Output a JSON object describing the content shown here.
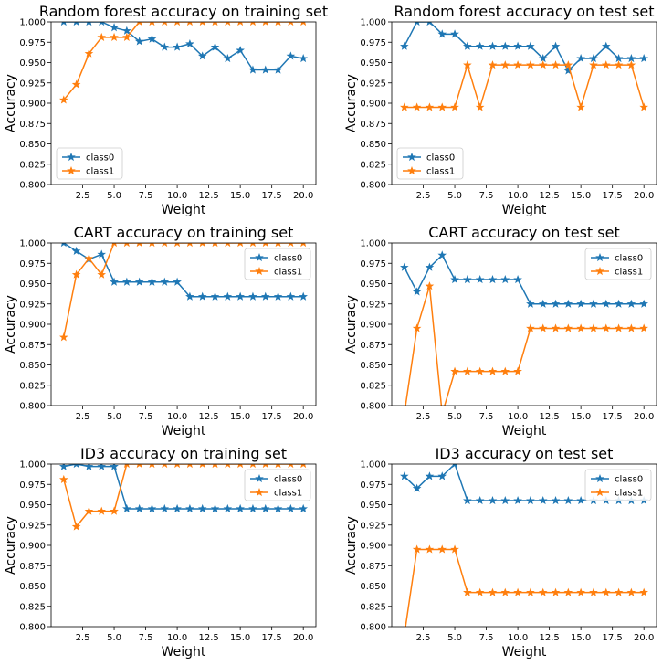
{
  "colors": {
    "class0": "#1f77b4",
    "class1": "#ff7f0e"
  },
  "chart_data": [
    {
      "type": "line",
      "title": "Random forest accuracy on training set",
      "xlabel": "Weight",
      "ylabel": "Accuracy",
      "xlim": [
        0,
        21
      ],
      "ylim": [
        0.8,
        1.0
      ],
      "xticks": [
        2.5,
        5.0,
        7.5,
        10.0,
        12.5,
        15.0,
        17.5,
        20.0
      ],
      "yticks": [
        0.8,
        0.825,
        0.85,
        0.875,
        0.9,
        0.925,
        0.95,
        0.975,
        1.0
      ],
      "grid": false,
      "legend_position": "lower-left",
      "x": [
        1,
        2,
        3,
        4,
        5,
        6,
        7,
        8,
        9,
        10,
        11,
        12,
        13,
        14,
        15,
        16,
        17,
        18,
        19,
        20
      ],
      "series": [
        {
          "name": "class0",
          "values": [
            1.0,
            1.0,
            1.0,
            1.0,
            0.993,
            0.989,
            0.976,
            0.979,
            0.969,
            0.969,
            0.973,
            0.958,
            0.969,
            0.955,
            0.965,
            0.941,
            0.941,
            0.941,
            0.958,
            0.955
          ]
        },
        {
          "name": "class1",
          "values": [
            0.904,
            0.923,
            0.961,
            0.981,
            0.981,
            0.981,
            1.0,
            1.0,
            1.0,
            1.0,
            1.0,
            1.0,
            1.0,
            1.0,
            1.0,
            1.0,
            1.0,
            1.0,
            1.0,
            1.0
          ]
        }
      ]
    },
    {
      "type": "line",
      "title": "Random forest accuracy on test set",
      "xlabel": "Weight",
      "ylabel": "Accuracy",
      "xlim": [
        0,
        21
      ],
      "ylim": [
        0.8,
        1.0
      ],
      "xticks": [
        2.5,
        5.0,
        7.5,
        10.0,
        12.5,
        15.0,
        17.5,
        20.0
      ],
      "yticks": [
        0.8,
        0.825,
        0.85,
        0.875,
        0.9,
        0.925,
        0.95,
        0.975,
        1.0
      ],
      "grid": false,
      "legend_position": "lower-left",
      "x": [
        1,
        2,
        3,
        4,
        5,
        6,
        7,
        8,
        9,
        10,
        11,
        12,
        13,
        14,
        15,
        16,
        17,
        18,
        19,
        20
      ],
      "series": [
        {
          "name": "class0",
          "values": [
            0.97,
            1.0,
            1.0,
            0.985,
            0.985,
            0.97,
            0.97,
            0.97,
            0.97,
            0.97,
            0.97,
            0.955,
            0.97,
            0.94,
            0.955,
            0.955,
            0.97,
            0.955,
            0.955,
            0.955
          ]
        },
        {
          "name": "class1",
          "values": [
            0.895,
            0.895,
            0.895,
            0.895,
            0.895,
            0.947,
            0.895,
            0.947,
            0.947,
            0.947,
            0.947,
            0.947,
            0.947,
            0.947,
            0.895,
            0.947,
            0.947,
            0.947,
            0.947,
            0.895
          ]
        }
      ]
    },
    {
      "type": "line",
      "title": "CART accuracy on training set",
      "xlabel": "Weight",
      "ylabel": "Accuracy",
      "xlim": [
        0,
        21
      ],
      "ylim": [
        0.8,
        1.0
      ],
      "xticks": [
        2.5,
        5.0,
        7.5,
        10.0,
        12.5,
        15.0,
        17.5,
        20.0
      ],
      "yticks": [
        0.8,
        0.825,
        0.85,
        0.875,
        0.9,
        0.925,
        0.95,
        0.975,
        1.0
      ],
      "grid": false,
      "legend_position": "upper-right",
      "x": [
        1,
        2,
        3,
        4,
        5,
        6,
        7,
        8,
        9,
        10,
        11,
        12,
        13,
        14,
        15,
        16,
        17,
        18,
        19,
        20
      ],
      "series": [
        {
          "name": "class0",
          "values": [
            1.0,
            0.99,
            0.98,
            0.986,
            0.952,
            0.952,
            0.952,
            0.952,
            0.952,
            0.952,
            0.934,
            0.934,
            0.934,
            0.934,
            0.934,
            0.934,
            0.934,
            0.934,
            0.934,
            0.934
          ]
        },
        {
          "name": "class1",
          "values": [
            0.884,
            0.961,
            0.981,
            0.961,
            1.0,
            1.0,
            1.0,
            1.0,
            1.0,
            1.0,
            1.0,
            1.0,
            1.0,
            1.0,
            1.0,
            1.0,
            1.0,
            1.0,
            1.0,
            1.0
          ]
        }
      ]
    },
    {
      "type": "line",
      "title": "CART accuracy on test set",
      "xlabel": "Weight",
      "ylabel": "Accuracy",
      "xlim": [
        0,
        21
      ],
      "ylim": [
        0.8,
        1.0
      ],
      "xticks": [
        2.5,
        5.0,
        7.5,
        10.0,
        12.5,
        15.0,
        17.5,
        20.0
      ],
      "yticks": [
        0.8,
        0.825,
        0.85,
        0.875,
        0.9,
        0.925,
        0.95,
        0.975,
        1.0
      ],
      "grid": false,
      "legend_position": "upper-right",
      "x": [
        1,
        2,
        3,
        4,
        5,
        6,
        7,
        8,
        9,
        10,
        11,
        12,
        13,
        14,
        15,
        16,
        17,
        18,
        19,
        20
      ],
      "series": [
        {
          "name": "class0",
          "values": [
            0.97,
            0.94,
            0.97,
            0.985,
            0.955,
            0.955,
            0.955,
            0.955,
            0.955,
            0.955,
            0.925,
            0.925,
            0.925,
            0.925,
            0.925,
            0.925,
            0.925,
            0.925,
            0.925,
            0.925
          ]
        },
        {
          "name": "class1",
          "values": [
            0.79,
            0.895,
            0.947,
            0.79,
            0.842,
            0.842,
            0.842,
            0.842,
            0.842,
            0.842,
            0.895,
            0.895,
            0.895,
            0.895,
            0.895,
            0.895,
            0.895,
            0.895,
            0.895,
            0.895
          ]
        }
      ]
    },
    {
      "type": "line",
      "title": "ID3 accuracy on training set",
      "xlabel": "Weight",
      "ylabel": "Accuracy",
      "xlim": [
        0,
        21
      ],
      "ylim": [
        0.8,
        1.0
      ],
      "xticks": [
        2.5,
        5.0,
        7.5,
        10.0,
        12.5,
        15.0,
        17.5,
        20.0
      ],
      "yticks": [
        0.8,
        0.825,
        0.85,
        0.875,
        0.9,
        0.925,
        0.95,
        0.975,
        1.0
      ],
      "grid": false,
      "legend_position": "upper-right",
      "x": [
        1,
        2,
        3,
        4,
        5,
        6,
        7,
        8,
        9,
        10,
        11,
        12,
        13,
        14,
        15,
        16,
        17,
        18,
        19,
        20
      ],
      "series": [
        {
          "name": "class0",
          "values": [
            0.997,
            1.0,
            0.997,
            0.997,
            0.997,
            0.945,
            0.945,
            0.945,
            0.945,
            0.945,
            0.945,
            0.945,
            0.945,
            0.945,
            0.945,
            0.945,
            0.945,
            0.945,
            0.945,
            0.945
          ]
        },
        {
          "name": "class1",
          "values": [
            0.981,
            0.923,
            0.942,
            0.942,
            0.942,
            1.0,
            1.0,
            1.0,
            1.0,
            1.0,
            1.0,
            1.0,
            1.0,
            1.0,
            1.0,
            1.0,
            1.0,
            1.0,
            1.0,
            1.0
          ]
        }
      ]
    },
    {
      "type": "line",
      "title": "ID3 accuracy on test set",
      "xlabel": "Weight",
      "ylabel": "Accuracy",
      "xlim": [
        0,
        21
      ],
      "ylim": [
        0.8,
        1.0
      ],
      "xticks": [
        2.5,
        5.0,
        7.5,
        10.0,
        12.5,
        15.0,
        17.5,
        20.0
      ],
      "yticks": [
        0.8,
        0.825,
        0.85,
        0.875,
        0.9,
        0.925,
        0.95,
        0.975,
        1.0
      ],
      "grid": false,
      "legend_position": "upper-right",
      "x": [
        1,
        2,
        3,
        4,
        5,
        6,
        7,
        8,
        9,
        10,
        11,
        12,
        13,
        14,
        15,
        16,
        17,
        18,
        19,
        20
      ],
      "series": [
        {
          "name": "class0",
          "values": [
            0.985,
            0.97,
            0.985,
            0.985,
            1.0,
            0.955,
            0.955,
            0.955,
            0.955,
            0.955,
            0.955,
            0.955,
            0.955,
            0.955,
            0.955,
            0.955,
            0.955,
            0.955,
            0.955,
            0.955
          ]
        },
        {
          "name": "class1",
          "values": [
            0.79,
            0.895,
            0.895,
            0.895,
            0.895,
            0.842,
            0.842,
            0.842,
            0.842,
            0.842,
            0.842,
            0.842,
            0.842,
            0.842,
            0.842,
            0.842,
            0.842,
            0.842,
            0.842,
            0.842
          ]
        }
      ]
    }
  ]
}
